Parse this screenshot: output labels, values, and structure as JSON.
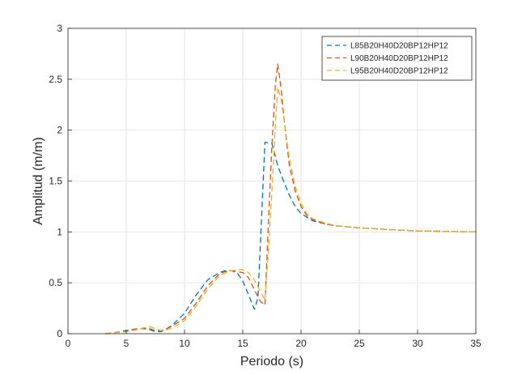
{
  "chart_data": {
    "type": "line",
    "title": "",
    "xlabel": "Periodo (s)",
    "ylabel": "Amplitud (m/m)",
    "xlim": [
      0,
      35
    ],
    "ylim": [
      0,
      3
    ],
    "xticks": [
      0,
      5,
      10,
      15,
      20,
      25,
      30,
      35
    ],
    "yticks": [
      0,
      0.5,
      1,
      1.5,
      2,
      2.5,
      3
    ],
    "grid": true,
    "legend_position": "top-right",
    "series": [
      {
        "name": "L85B20H40D20BP12HP12",
        "color": "#0072BD",
        "style": "dashed",
        "points": [
          [
            3.2,
            0
          ],
          [
            4,
            0.01
          ],
          [
            5,
            0.03
          ],
          [
            6,
            0.05
          ],
          [
            6.5,
            0.05
          ],
          [
            7,
            0.04
          ],
          [
            7.5,
            0.02
          ],
          [
            8,
            0.02
          ],
          [
            8.5,
            0.05
          ],
          [
            9,
            0.09
          ],
          [
            10,
            0.2
          ],
          [
            11,
            0.38
          ],
          [
            12,
            0.53
          ],
          [
            13,
            0.6
          ],
          [
            13.5,
            0.62
          ],
          [
            14,
            0.62
          ],
          [
            14.5,
            0.6
          ],
          [
            15,
            0.52
          ],
          [
            15.5,
            0.38
          ],
          [
            16,
            0.24
          ],
          [
            16.3,
            0.35
          ],
          [
            16.6,
            1.1
          ],
          [
            16.9,
            1.88
          ],
          [
            17.5,
            1.87
          ],
          [
            18,
            1.65
          ],
          [
            18.5,
            1.5
          ],
          [
            19,
            1.36
          ],
          [
            19.5,
            1.25
          ],
          [
            20,
            1.18
          ],
          [
            21,
            1.11
          ],
          [
            22,
            1.08
          ],
          [
            23,
            1.06
          ],
          [
            25,
            1.04
          ],
          [
            28,
            1.02
          ],
          [
            30,
            1.01
          ],
          [
            35,
            1.0
          ]
        ]
      },
      {
        "name": "L90B20H40D20BP12HP12",
        "color": "#D95319",
        "style": "dashed",
        "points": [
          [
            3.2,
            0
          ],
          [
            4,
            0.01
          ],
          [
            5,
            0.02
          ],
          [
            6,
            0.05
          ],
          [
            6.5,
            0.05
          ],
          [
            7,
            0.05
          ],
          [
            7.5,
            0.03
          ],
          [
            8,
            0.03
          ],
          [
            8.5,
            0.05
          ],
          [
            9,
            0.08
          ],
          [
            10,
            0.15
          ],
          [
            11,
            0.3
          ],
          [
            12,
            0.47
          ],
          [
            13,
            0.59
          ],
          [
            13.5,
            0.61
          ],
          [
            14,
            0.62
          ],
          [
            15,
            0.6
          ],
          [
            15.5,
            0.55
          ],
          [
            16,
            0.43
          ],
          [
            16.5,
            0.32
          ],
          [
            16.9,
            0.28
          ],
          [
            17.2,
            1.1
          ],
          [
            17.5,
            1.85
          ],
          [
            17.8,
            2.45
          ],
          [
            18,
            2.65
          ],
          [
            18.3,
            2.4
          ],
          [
            18.6,
            2.05
          ],
          [
            19,
            1.65
          ],
          [
            19.5,
            1.4
          ],
          [
            20,
            1.25
          ],
          [
            20.5,
            1.16
          ],
          [
            21,
            1.12
          ],
          [
            22,
            1.08
          ],
          [
            23,
            1.06
          ],
          [
            25,
            1.04
          ],
          [
            28,
            1.02
          ],
          [
            30,
            1.01
          ],
          [
            35,
            1.0
          ]
        ]
      },
      {
        "name": "L95B20H40D20BP12HP12",
        "color": "#EDB120",
        "style": "dashed",
        "points": [
          [
            3.2,
            0
          ],
          [
            4,
            0.01
          ],
          [
            5,
            0.02
          ],
          [
            6,
            0.04
          ],
          [
            6.5,
            0.06
          ],
          [
            7,
            0.07
          ],
          [
            7.5,
            0.05
          ],
          [
            8,
            0.03
          ],
          [
            8.5,
            0.04
          ],
          [
            9,
            0.06
          ],
          [
            10,
            0.13
          ],
          [
            11,
            0.27
          ],
          [
            12,
            0.44
          ],
          [
            13,
            0.57
          ],
          [
            14,
            0.62
          ],
          [
            15,
            0.63
          ],
          [
            15.5,
            0.6
          ],
          [
            16,
            0.53
          ],
          [
            16.5,
            0.42
          ],
          [
            16.9,
            0.33
          ],
          [
            17.2,
            0.8
          ],
          [
            17.5,
            1.4
          ],
          [
            17.8,
            2.05
          ],
          [
            18,
            2.42
          ],
          [
            18.3,
            2.3
          ],
          [
            18.6,
            2.05
          ],
          [
            19,
            1.72
          ],
          [
            19.5,
            1.45
          ],
          [
            20,
            1.28
          ],
          [
            20.5,
            1.18
          ],
          [
            21,
            1.13
          ],
          [
            22,
            1.09
          ],
          [
            23,
            1.06
          ],
          [
            25,
            1.04
          ],
          [
            28,
            1.02
          ],
          [
            30,
            1.01
          ],
          [
            35,
            1.0
          ]
        ]
      }
    ]
  }
}
